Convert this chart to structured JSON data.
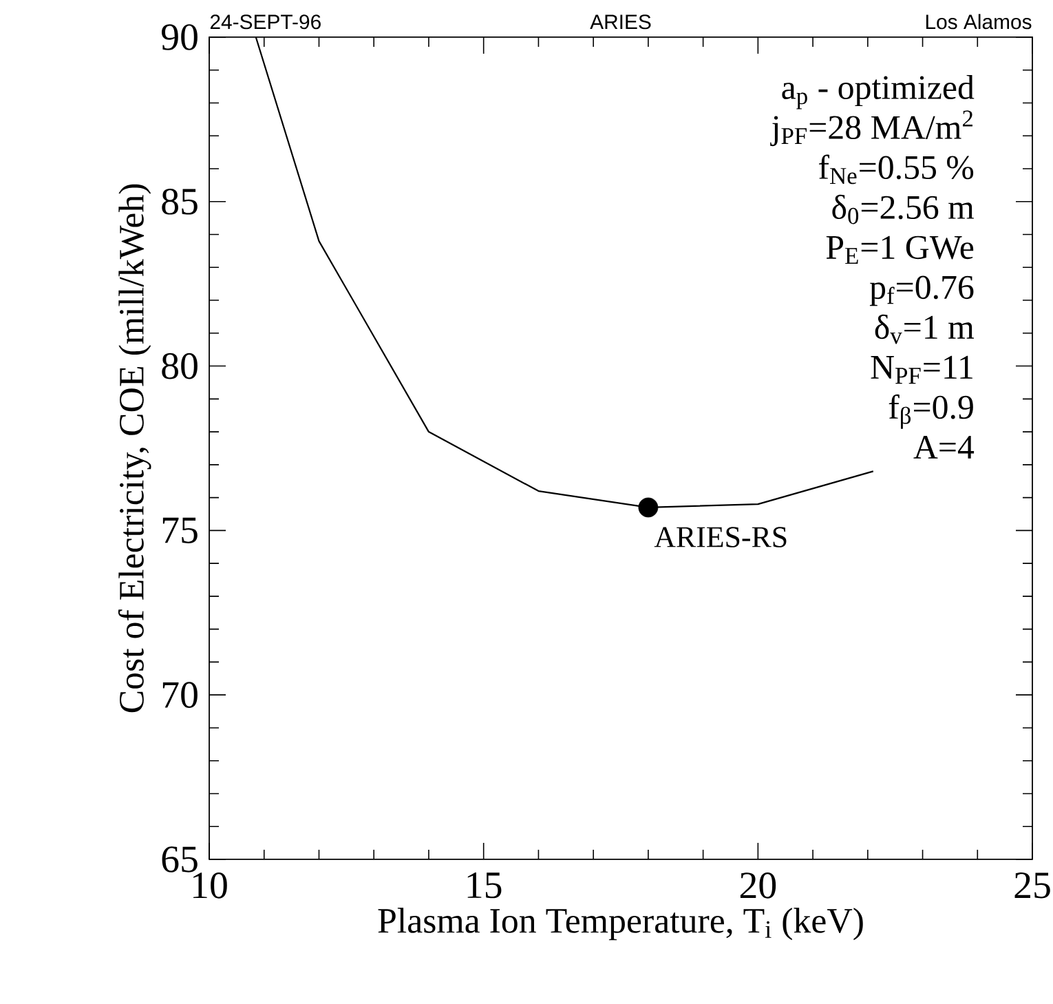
{
  "chart_data": {
    "type": "line",
    "xlabel": "Plasma Ion Temperature, T$_{i}$ (keV)",
    "ylabel": "Cost of Electricity, COE (mill/kWeh)",
    "xlim": [
      10,
      25
    ],
    "xticks": [
      10,
      15,
      20,
      25
    ],
    "ylim": [
      65,
      90
    ],
    "yticks": [
      65,
      70,
      75,
      80,
      85,
      90
    ],
    "series": [
      {
        "color": "#000000",
        "marker": "none",
        "x": [
          10.85,
          12,
          14,
          16,
          18,
          20,
          22.1
        ],
        "values": [
          90,
          83.8,
          78.0,
          76.2,
          75.7,
          75.8,
          76.8
        ]
      },
      {
        "type": "scatter",
        "color": "#000000",
        "marker": "circle",
        "x": [
          18
        ],
        "values": [
          75.7
        ]
      }
    ],
    "annotations": [
      "24-SEPT-96",
      "ARIES",
      "Los Alamos",
      "a$_{p}$ - optimized",
      "j$_{PF}$=28 MA/m$^{2}$",
      "f$_{Ne}$=0.55 %",
      "δ$_{0}$=2.56 m",
      "P$_{E}$=1 GWe",
      "p$_{f}$=0.76",
      "δ$_{v}$=1 m",
      "N$_{PF}$=11",
      "f$_{β}$=0.9",
      "A=4",
      {
        "text": "ARIES-RS",
        "x": 18,
        "y": 75.7
      }
    ]
  }
}
